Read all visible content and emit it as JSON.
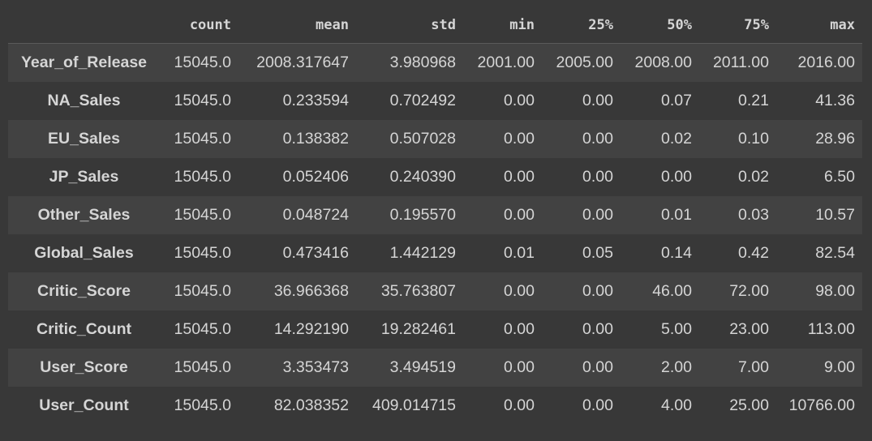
{
  "table": {
    "columns": [
      "",
      "count",
      "mean",
      "std",
      "min",
      "25%",
      "50%",
      "75%",
      "max"
    ],
    "rows": [
      {
        "label": "Year_of_Release",
        "cells": [
          "15045.0",
          "2008.317647",
          "3.980968",
          "2001.00",
          "2005.00",
          "2008.00",
          "2011.00",
          "2016.00"
        ]
      },
      {
        "label": "NA_Sales",
        "cells": [
          "15045.0",
          "0.233594",
          "0.702492",
          "0.00",
          "0.00",
          "0.07",
          "0.21",
          "41.36"
        ]
      },
      {
        "label": "EU_Sales",
        "cells": [
          "15045.0",
          "0.138382",
          "0.507028",
          "0.00",
          "0.00",
          "0.02",
          "0.10",
          "28.96"
        ]
      },
      {
        "label": "JP_Sales",
        "cells": [
          "15045.0",
          "0.052406",
          "0.240390",
          "0.00",
          "0.00",
          "0.00",
          "0.02",
          "6.50"
        ]
      },
      {
        "label": "Other_Sales",
        "cells": [
          "15045.0",
          "0.048724",
          "0.195570",
          "0.00",
          "0.00",
          "0.01",
          "0.03",
          "10.57"
        ]
      },
      {
        "label": "Global_Sales",
        "cells": [
          "15045.0",
          "0.473416",
          "1.442129",
          "0.01",
          "0.05",
          "0.14",
          "0.42",
          "82.54"
        ]
      },
      {
        "label": "Critic_Score",
        "cells": [
          "15045.0",
          "36.966368",
          "35.763807",
          "0.00",
          "0.00",
          "46.00",
          "72.00",
          "98.00"
        ]
      },
      {
        "label": "Critic_Count",
        "cells": [
          "15045.0",
          "14.292190",
          "19.282461",
          "0.00",
          "0.00",
          "5.00",
          "23.00",
          "113.00"
        ]
      },
      {
        "label": "User_Score",
        "cells": [
          "15045.0",
          "3.353473",
          "3.494519",
          "0.00",
          "0.00",
          "2.00",
          "7.00",
          "9.00"
        ]
      },
      {
        "label": "User_Count",
        "cells": [
          "15045.0",
          "82.038352",
          "409.014715",
          "0.00",
          "0.00",
          "4.00",
          "25.00",
          "10766.00"
        ]
      }
    ]
  },
  "colors": {
    "background": "#383838",
    "row_stripe": "#424242",
    "text": "#d5d5d5"
  }
}
